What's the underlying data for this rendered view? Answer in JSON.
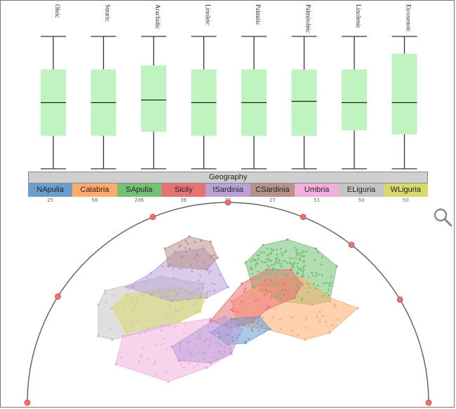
{
  "chart_data": [
    {
      "type": "boxplot",
      "dimensions": [
        "Oleic",
        "Stearic",
        "Arachidic",
        "Linoleic",
        "Palmitic",
        "Palmitoleic",
        "Linolenic",
        "Eicosenoic"
      ],
      "normalized_stats": [
        {
          "min": 0.0,
          "q1": 0.25,
          "median": 0.5,
          "q3": 0.75,
          "max": 1.0
        },
        {
          "min": 0.0,
          "q1": 0.25,
          "median": 0.5,
          "q3": 0.75,
          "max": 1.0
        },
        {
          "min": 0.0,
          "q1": 0.28,
          "median": 0.52,
          "q3": 0.78,
          "max": 1.0
        },
        {
          "min": 0.0,
          "q1": 0.25,
          "median": 0.5,
          "q3": 0.75,
          "max": 1.0
        },
        {
          "min": 0.0,
          "q1": 0.25,
          "median": 0.5,
          "q3": 0.75,
          "max": 1.0
        },
        {
          "min": 0.0,
          "q1": 0.25,
          "median": 0.51,
          "q3": 0.75,
          "max": 1.0
        },
        {
          "min": 0.0,
          "q1": 0.29,
          "median": 0.5,
          "q3": 0.75,
          "max": 1.0
        },
        {
          "min": 0.0,
          "q1": 0.26,
          "median": 0.5,
          "q3": 0.87,
          "max": 1.0
        }
      ],
      "box_color": "#bff3bf"
    },
    {
      "type": "radviz",
      "category_title": "Geography",
      "categories": [
        {
          "name": "NApulia",
          "count": "25",
          "color": "#6a9ecf"
        },
        {
          "name": "Calabria",
          "count": "56",
          "color": "#ffab6b"
        },
        {
          "name": "SApulia",
          "count": "206",
          "color": "#73c173"
        },
        {
          "name": "Sicily",
          "count": "36",
          "color": "#e87272"
        },
        {
          "name": "ISardinia",
          "count": "71",
          "color": "#b9a0d9"
        },
        {
          "name": "CSardinia",
          "count": "27",
          "color": "#b89289"
        },
        {
          "name": "Umbria",
          "count": "51",
          "color": "#f2aedd"
        },
        {
          "name": "ELiguria",
          "count": "50",
          "color": "#c4c4c4"
        },
        {
          "name": "WLiguria",
          "count": "50",
          "color": "#d9d96b"
        }
      ],
      "anchor_color": "#f07070"
    }
  ],
  "ui": {
    "zoom_icon": "magnifier-icon"
  }
}
